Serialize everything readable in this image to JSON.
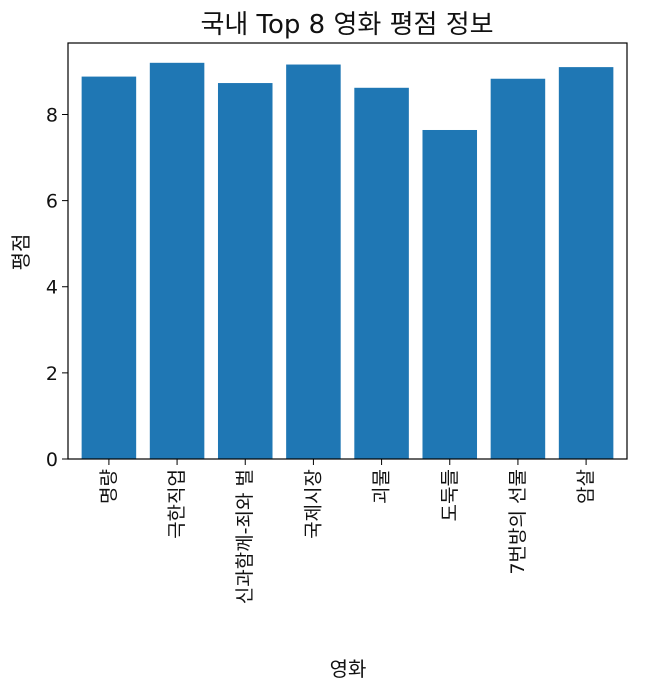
{
  "chart_data": {
    "type": "bar",
    "title": "국내 Top 8 영화 평점 정보",
    "xlabel": "영화",
    "ylabel": "평점",
    "categories": [
      "명량",
      "극한직업",
      "신과함께-죄와 벌",
      "국제시장",
      "괴물",
      "도둑들",
      "7번방의 선물",
      "암살"
    ],
    "values": [
      8.88,
      9.2,
      8.73,
      9.16,
      8.62,
      7.64,
      8.83,
      9.1
    ],
    "ylim": [
      0,
      9.66
    ],
    "yticks": [
      0,
      2,
      4,
      6,
      8
    ],
    "bar_color": "#1f77b4",
    "grid": false
  }
}
